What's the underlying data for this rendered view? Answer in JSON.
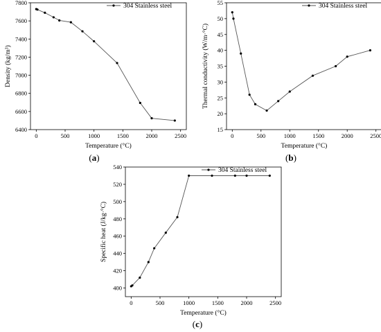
{
  "chart_data": [
    {
      "type": "line",
      "panel_label": "a",
      "legend": [
        "304 Stainless steel"
      ],
      "legend_position": "top-right",
      "xlabel": "Temperature (°C)",
      "ylabel": "Density (kg/m³)",
      "xlim": [
        -100,
        2600
      ],
      "ylim": [
        6400,
        7800
      ],
      "xticks": [
        0,
        500,
        1000,
        1500,
        2000,
        2500
      ],
      "yticks": [
        6400,
        6600,
        6800,
        7000,
        7200,
        7400,
        7600,
        7800
      ],
      "grid": false,
      "series": [
        {
          "name": "304 Stainless steel",
          "x": [
            0,
            20,
            150,
            300,
            400,
            600,
            800,
            1000,
            1400,
            1800,
            2000,
            2400
          ],
          "y": [
            7730,
            7725,
            7690,
            7640,
            7605,
            7585,
            7485,
            7375,
            7135,
            6695,
            6525,
            6500
          ]
        }
      ]
    },
    {
      "type": "line",
      "panel_label": "b",
      "legend": [
        "304 Stainless steel"
      ],
      "legend_position": "top-right",
      "xlabel": "Temperature (°C)",
      "ylabel": "Thermal conductivity (W/m·°C)",
      "xlim": [
        -100,
        2600
      ],
      "ylim": [
        15,
        55
      ],
      "xticks": [
        0,
        500,
        1000,
        1500,
        2000,
        2500
      ],
      "yticks": [
        15,
        20,
        25,
        30,
        35,
        40,
        45,
        50,
        55
      ],
      "grid": false,
      "series": [
        {
          "name": "304 Stainless steel",
          "x": [
            0,
            20,
            150,
            300,
            400,
            600,
            800,
            1000,
            1400,
            1800,
            2000,
            2400
          ],
          "y": [
            52,
            50,
            39,
            26,
            23,
            21,
            24,
            27,
            32,
            35,
            38,
            40
          ]
        }
      ]
    },
    {
      "type": "line",
      "panel_label": "c",
      "legend": [
        "304 Stainless steel"
      ],
      "legend_position": "top-right",
      "xlabel": "Temperature (°C)",
      "ylabel": "Specific heat (J/kg·°C)",
      "xlim": [
        -100,
        2600
      ],
      "ylim": [
        390,
        540
      ],
      "xticks": [
        0,
        500,
        1000,
        1500,
        2000,
        2500
      ],
      "yticks": [
        400,
        420,
        440,
        460,
        480,
        500,
        520,
        540
      ],
      "grid": false,
      "series": [
        {
          "name": "304 Stainless steel",
          "x": [
            0,
            20,
            150,
            300,
            400,
            600,
            800,
            1000,
            1400,
            1800,
            2000,
            2400
          ],
          "y": [
            402,
            403,
            412,
            430,
            446,
            464,
            482,
            530,
            530,
            530,
            530,
            530
          ]
        }
      ]
    }
  ]
}
